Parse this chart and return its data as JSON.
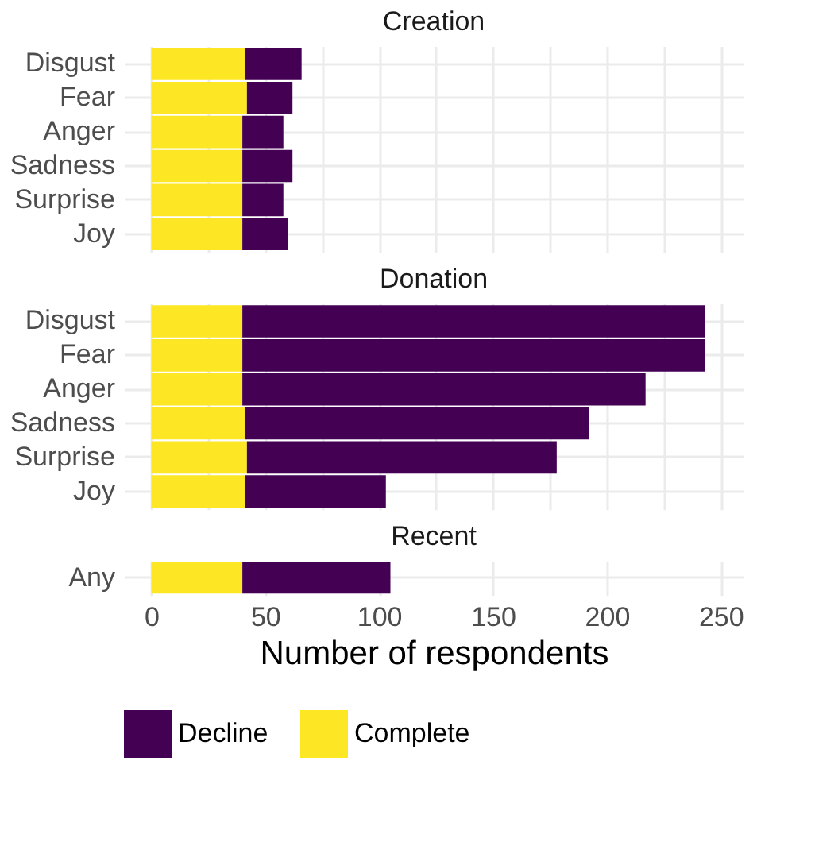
{
  "chart_data": [
    {
      "type": "bar",
      "orientation": "horizontal",
      "stacked": true,
      "title": "Creation",
      "categories": [
        "Disgust",
        "Fear",
        "Anger",
        "Sadness",
        "Surprise",
        "Joy"
      ],
      "series": [
        {
          "name": "Complete",
          "color": "#fde725",
          "values": [
            41,
            42,
            40,
            40,
            40,
            40
          ]
        },
        {
          "name": "Decline",
          "color": "#440154",
          "values": [
            25,
            20,
            18,
            22,
            18,
            20
          ]
        }
      ],
      "xlim": [
        -12,
        260
      ],
      "xticks": [
        0,
        {
          "value": 25,
          "label": null
        },
        50,
        {
          "value": 75,
          "label": null
        },
        100,
        {
          "value": 125,
          "label": null
        },
        150,
        {
          "value": 175,
          "label": null
        },
        200,
        {
          "value": 225,
          "label": null
        },
        250
      ],
      "tick_labels": "y",
      "grid": true,
      "legend": "bottom"
    },
    {
      "type": "bar",
      "orientation": "horizontal",
      "stacked": true,
      "title": "Donation",
      "categories": [
        "Disgust",
        "Fear",
        "Anger",
        "Sadness",
        "Surprise",
        "Joy"
      ],
      "series": [
        {
          "color": "#fde725",
          "values": [
            40,
            40,
            40,
            41,
            42,
            41
          ]
        },
        {
          "color": "#440154",
          "values": [
            203,
            203,
            177,
            151,
            136,
            62
          ]
        }
      ],
      "xlim": [
        -12,
        260
      ],
      "xticks": [
        0,
        {
          "value": 25,
          "label": null
        },
        50,
        {
          "value": 75,
          "label": null
        },
        100,
        {
          "value": 125,
          "label": null
        },
        150,
        {
          "value": 175,
          "label": null
        },
        200,
        {
          "value": 225,
          "label": null
        },
        250
      ],
      "tick_labels": "y",
      "grid": true,
      "legend": false
    },
    {
      "type": "bar",
      "orientation": "horizontal",
      "stacked": true,
      "title": "Recent",
      "xlabel": "Number of respondents",
      "categories": [
        "Any"
      ],
      "series": [
        {
          "color": "#fde725",
          "values": [
            40
          ]
        },
        {
          "color": "#440154",
          "values": [
            65
          ]
        }
      ],
      "xlim": [
        -12,
        260
      ],
      "xticks": [
        0,
        50,
        100,
        150,
        200,
        250
      ],
      "grid": true,
      "legend": false
    }
  ]
}
